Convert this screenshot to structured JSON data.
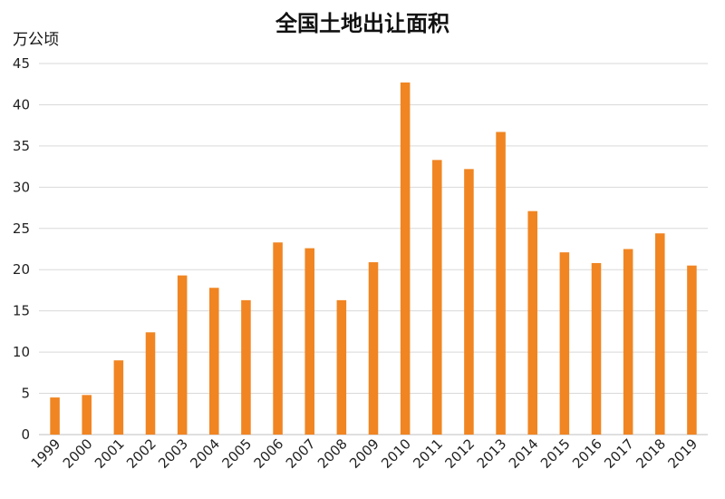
{
  "chart_data": {
    "type": "bar",
    "title": "全国土地出让面积",
    "ylabel": "万公顷",
    "xlabel": "",
    "categories": [
      "1999",
      "2000",
      "2001",
      "2002",
      "2003",
      "2004",
      "2005",
      "2006",
      "2007",
      "2008",
      "2009",
      "2010",
      "2011",
      "2012",
      "2013",
      "2014",
      "2015",
      "2016",
      "2017",
      "2018",
      "2019"
    ],
    "values": [
      4.5,
      4.8,
      9.0,
      12.4,
      19.3,
      17.8,
      16.3,
      23.3,
      22.6,
      16.3,
      20.9,
      42.7,
      33.3,
      32.2,
      36.7,
      27.1,
      22.1,
      20.8,
      22.5,
      24.4,
      20.5
    ],
    "ylim": [
      0,
      45
    ],
    "yticks": [
      0,
      5,
      10,
      15,
      20,
      25,
      30,
      35,
      40,
      45
    ],
    "grid": "horizontal",
    "legend": "none",
    "colors": {
      "bar": "#F08522"
    }
  }
}
